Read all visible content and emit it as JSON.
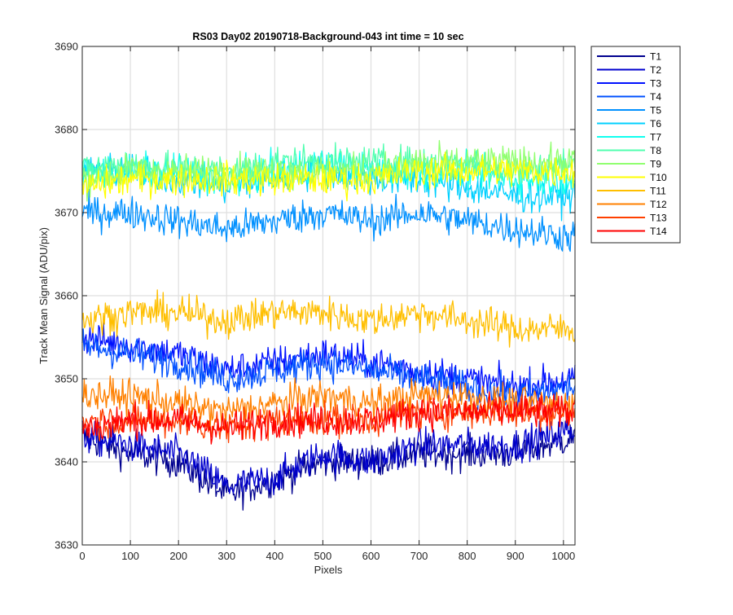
{
  "chart_data": {
    "type": "line",
    "title": "RS03 Day02 20190718-Background-043 int time = 10 sec",
    "xlabel": "Pixels",
    "ylabel": "Track Mean Signal (ADU/pix)",
    "xlim": [
      0,
      1024
    ],
    "ylim": [
      3630,
      3690
    ],
    "xticks": [
      0,
      100,
      200,
      300,
      400,
      500,
      600,
      700,
      800,
      900,
      1000
    ],
    "yticks": [
      3630,
      3640,
      3650,
      3660,
      3670,
      3680,
      3690
    ],
    "grid": true,
    "legend_position": "outside-top-right",
    "series": [
      {
        "name": "T1",
        "color": "#00008F",
        "x": [
          0,
          100,
          200,
          300,
          400,
          500,
          600,
          700,
          800,
          900,
          1024
        ],
        "y": [
          3643,
          3641,
          3640,
          3636,
          3638,
          3640,
          3640,
          3641,
          3641,
          3641,
          3643
        ]
      },
      {
        "name": "T2",
        "color": "#0000CF",
        "x": [
          0,
          100,
          200,
          300,
          400,
          500,
          600,
          700,
          800,
          900,
          1024
        ],
        "y": [
          3643,
          3642,
          3641,
          3637,
          3638,
          3641,
          3640,
          3642,
          3642,
          3642,
          3644
        ]
      },
      {
        "name": "T3",
        "color": "#0010FF",
        "x": [
          0,
          100,
          200,
          300,
          400,
          500,
          600,
          700,
          800,
          900,
          1024
        ],
        "y": [
          3655,
          3654,
          3653,
          3651,
          3652,
          3653,
          3652,
          3651,
          3650,
          3649,
          3650
        ]
      },
      {
        "name": "T4",
        "color": "#0050FF",
        "x": [
          0,
          100,
          200,
          300,
          400,
          500,
          600,
          700,
          800,
          900,
          1024
        ],
        "y": [
          3654,
          3653,
          3652,
          3650,
          3651,
          3652,
          3651,
          3650,
          3649,
          3648,
          3649
        ]
      },
      {
        "name": "T5",
        "color": "#0090FF",
        "x": [
          0,
          100,
          200,
          300,
          400,
          500,
          600,
          700,
          800,
          900,
          1024
        ],
        "y": [
          3670,
          3670,
          3669,
          3668,
          3669,
          3670,
          3669,
          3670,
          3669,
          3668,
          3667
        ]
      },
      {
        "name": "T6",
        "color": "#00D0FF",
        "x": [
          0,
          100,
          200,
          300,
          400,
          500,
          600,
          700,
          800,
          900,
          1024
        ],
        "y": [
          3675,
          3675,
          3674,
          3673,
          3674,
          3675,
          3674,
          3674,
          3673,
          3672,
          3672
        ]
      },
      {
        "name": "T7",
        "color": "#10FFEF",
        "x": [
          0,
          100,
          200,
          300,
          400,
          500,
          600,
          700,
          800,
          900,
          1024
        ],
        "y": [
          3675,
          3675,
          3675,
          3674,
          3675,
          3676,
          3675,
          3675,
          3675,
          3674,
          3674
        ]
      },
      {
        "name": "T8",
        "color": "#50FFAF",
        "x": [
          0,
          100,
          200,
          300,
          400,
          500,
          600,
          700,
          800,
          900,
          1024
        ],
        "y": [
          3675,
          3676,
          3675,
          3675,
          3676,
          3676,
          3676,
          3676,
          3676,
          3675,
          3676
        ]
      },
      {
        "name": "T9",
        "color": "#90FF6F",
        "x": [
          0,
          100,
          200,
          300,
          400,
          500,
          600,
          700,
          800,
          900,
          1024
        ],
        "y": [
          3674,
          3675,
          3675,
          3675,
          3675,
          3675,
          3675,
          3676,
          3676,
          3676,
          3676
        ]
      },
      {
        "name": "T10",
        "color": "#FFFF00",
        "x": [
          0,
          100,
          200,
          300,
          400,
          500,
          600,
          700,
          800,
          900,
          1024
        ],
        "y": [
          3673,
          3674,
          3674,
          3674,
          3674,
          3674,
          3674,
          3675,
          3675,
          3675,
          3675
        ]
      },
      {
        "name": "T11",
        "color": "#FFBF00",
        "x": [
          0,
          100,
          200,
          300,
          400,
          500,
          600,
          700,
          800,
          900,
          1024
        ],
        "y": [
          3657,
          3658,
          3658,
          3657,
          3658,
          3658,
          3657,
          3658,
          3657,
          3656,
          3656
        ]
      },
      {
        "name": "T12",
        "color": "#FF8000",
        "x": [
          0,
          100,
          200,
          300,
          400,
          500,
          600,
          700,
          800,
          900,
          1024
        ],
        "y": [
          3648,
          3648,
          3647,
          3646,
          3647,
          3648,
          3647,
          3648,
          3648,
          3647,
          3647
        ]
      },
      {
        "name": "T13",
        "color": "#FF4000",
        "x": [
          0,
          100,
          200,
          300,
          400,
          500,
          600,
          700,
          800,
          900,
          1024
        ],
        "y": [
          3645,
          3645,
          3645,
          3644,
          3645,
          3645,
          3645,
          3646,
          3646,
          3646,
          3646
        ]
      },
      {
        "name": "T14",
        "color": "#FF0000",
        "x": [
          0,
          100,
          200,
          300,
          400,
          500,
          600,
          700,
          800,
          900,
          1024
        ],
        "y": [
          3644,
          3645,
          3645,
          3644,
          3645,
          3645,
          3645,
          3646,
          3646,
          3646,
          3646
        ]
      }
    ]
  }
}
